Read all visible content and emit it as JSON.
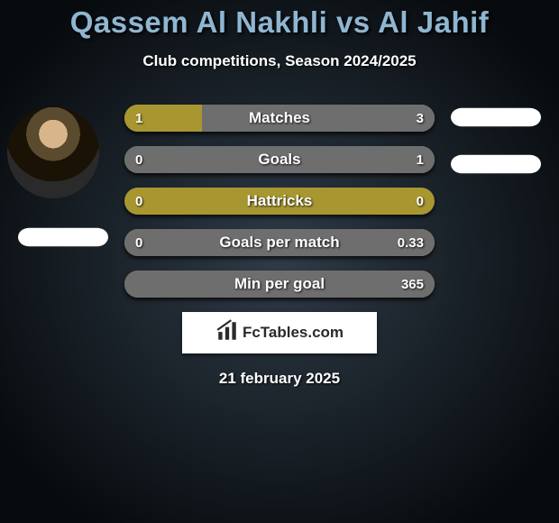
{
  "background_gradient": {
    "type": "radial",
    "inner": "#2f3b47",
    "outer": "#070b0e"
  },
  "title": {
    "text": "Qassem Al Nakhli vs Al Jahif",
    "color": "#8fb6d1",
    "fontsize": 33,
    "fontweight": 900
  },
  "subtitle": {
    "text": "Club competitions, Season 2024/2025",
    "color": "#ffffff",
    "fontsize": 17,
    "fontweight": 700
  },
  "colors": {
    "left_team": "#a89730",
    "right_team": "#6e6e6e",
    "bar_label_text": "#ffffff",
    "bar_value_text": "#ffffff",
    "name_pill_bg": "#ffffff"
  },
  "bars": [
    {
      "label": "Matches",
      "left_value": "1",
      "right_value": "3",
      "left_pct": 25,
      "right_pct": 75
    },
    {
      "label": "Goals",
      "left_value": "0",
      "right_value": "1",
      "left_pct": 0,
      "right_pct": 100
    },
    {
      "label": "Hattricks",
      "left_value": "0",
      "right_value": "0",
      "left_pct": 0,
      "right_pct": 0
    },
    {
      "label": "Goals per match",
      "left_value": "0",
      "right_value": "0.33",
      "left_pct": 0,
      "right_pct": 100
    },
    {
      "label": "Min per goal",
      "left_value": "",
      "right_value": "365",
      "left_pct": 0,
      "right_pct": 100
    }
  ],
  "bar_style": {
    "height": 30,
    "radius": 15,
    "gap": 16,
    "label_fontsize": 17,
    "value_fontsize": 15
  },
  "fctables": {
    "label": "FcTables.com",
    "bg": "#ffffff",
    "text_color": "#2a2a2a"
  },
  "date": {
    "text": "21 february 2025",
    "color": "#ffffff",
    "fontsize": 17
  }
}
